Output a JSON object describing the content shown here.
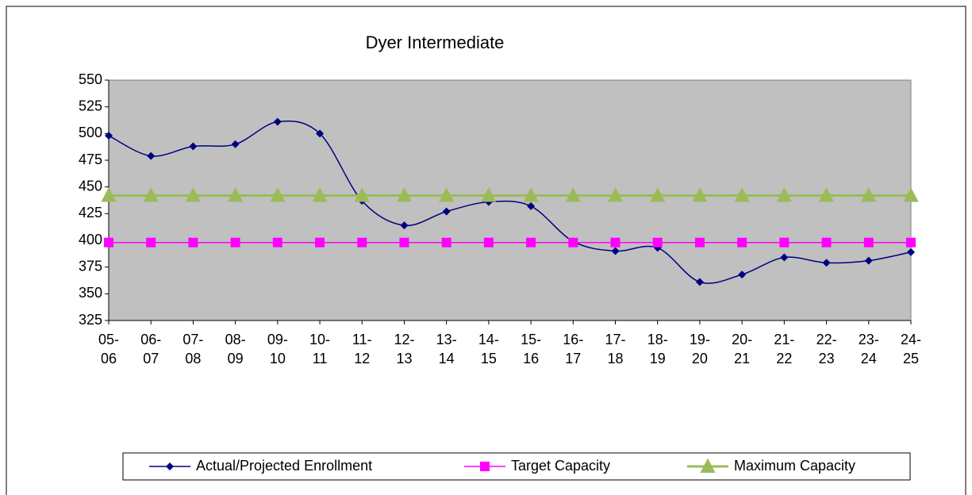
{
  "chart_data": {
    "type": "line",
    "title": "Dyer Intermediate",
    "categories": [
      "05-06",
      "06-07",
      "07-08",
      "08-09",
      "09-10",
      "10-11",
      "11-12",
      "12-13",
      "13-14",
      "14-15",
      "15-16",
      "16-17",
      "17-18",
      "18-19",
      "19-20",
      "20-21",
      "21-22",
      "22-23",
      "23-24",
      "24-25"
    ],
    "series": [
      {
        "name": "Actual/Projected Enrollment",
        "color": "#000080",
        "marker": "diamond",
        "smooth": true,
        "values": [
          498,
          479,
          488,
          490,
          511,
          500,
          437,
          414,
          427,
          436,
          432,
          399,
          390,
          393,
          361,
          368,
          384,
          379,
          381,
          389
        ]
      },
      {
        "name": "Target Capacity",
        "color": "#ff00ff",
        "marker": "square",
        "smooth": false,
        "values": [
          398,
          398,
          398,
          398,
          398,
          398,
          398,
          398,
          398,
          398,
          398,
          398,
          398,
          398,
          398,
          398,
          398,
          398,
          398,
          398
        ]
      },
      {
        "name": "Maximum Capacity",
        "color": "#9bbb59",
        "marker": "triangle",
        "smooth": false,
        "values": [
          442,
          442,
          442,
          442,
          442,
          442,
          442,
          442,
          442,
          442,
          442,
          442,
          442,
          442,
          442,
          442,
          442,
          442,
          442,
          442
        ]
      }
    ],
    "ylim": [
      325,
      550
    ],
    "yticks": [
      325,
      350,
      375,
      400,
      425,
      450,
      475,
      500,
      525,
      550
    ],
    "legend": "bottom"
  }
}
